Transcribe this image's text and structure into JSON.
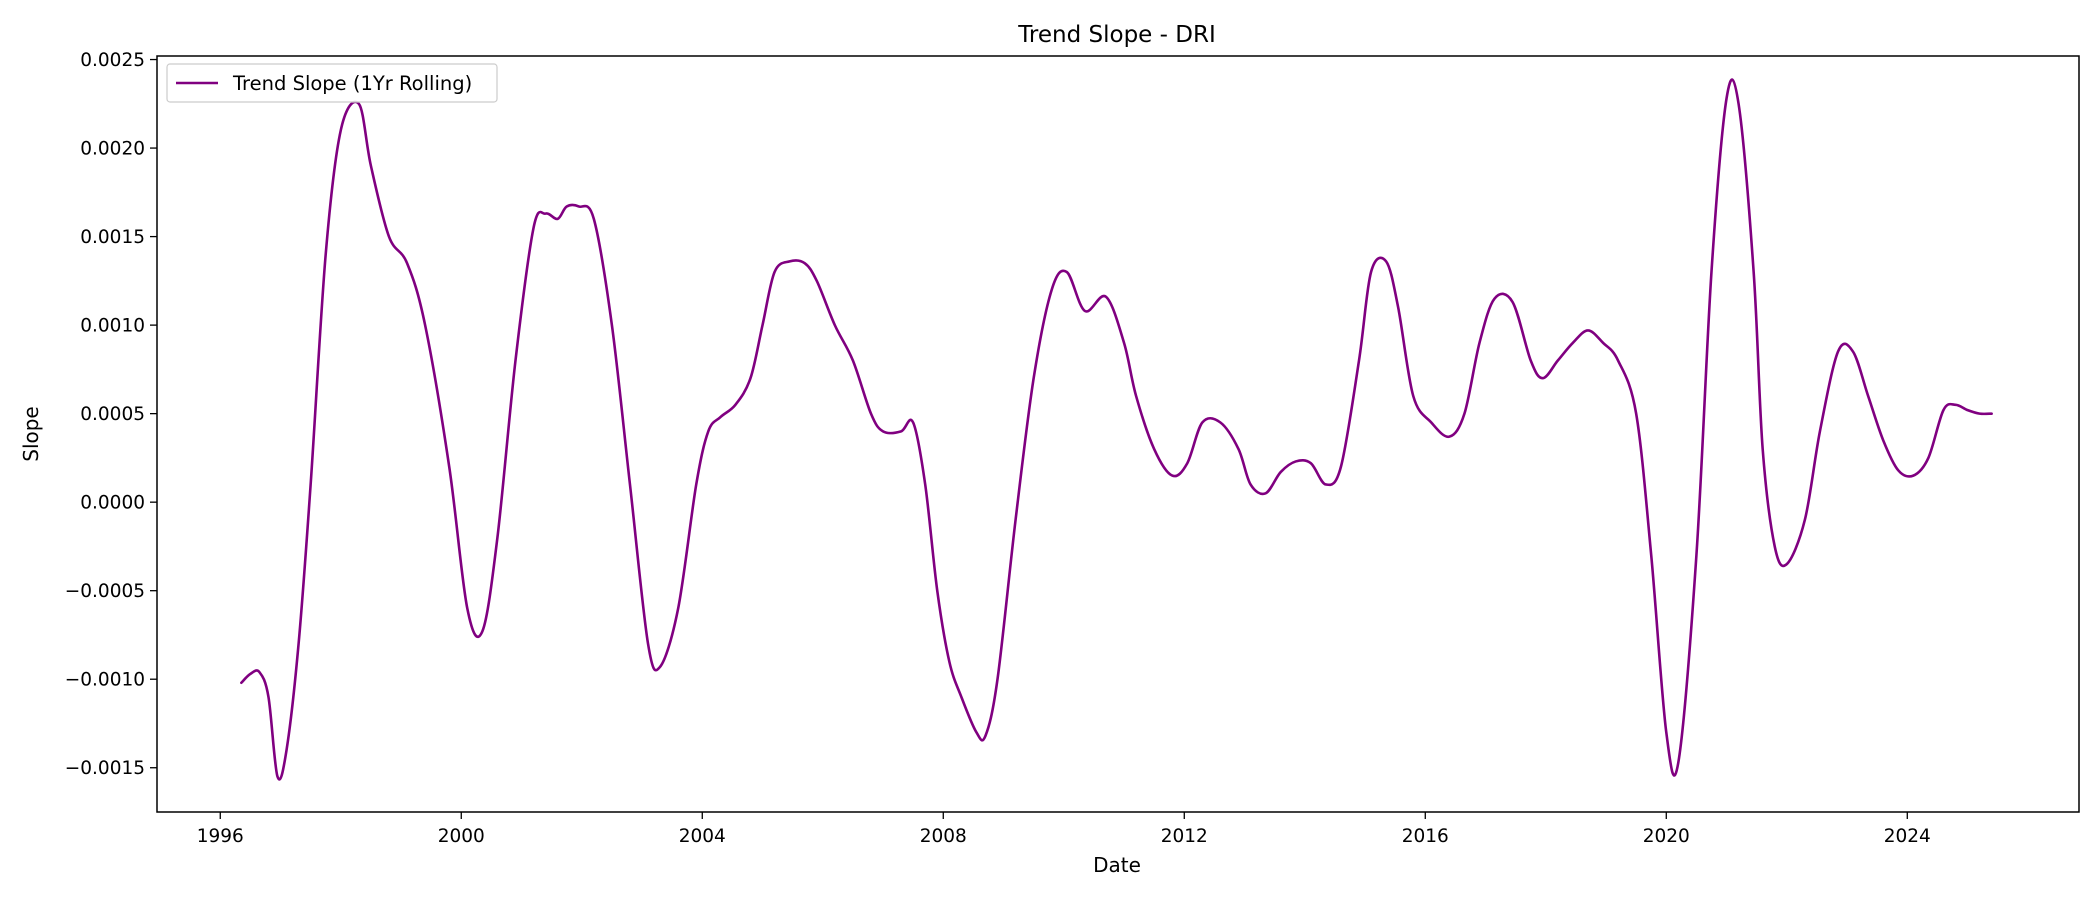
{
  "chart_data": {
    "type": "line",
    "title": "Trend Slope - DRI",
    "xlabel": "Date",
    "ylabel": "Slope",
    "xlim": [
      1994.95,
      2026.85
    ],
    "ylim": [
      -0.00175,
      0.00252
    ],
    "x_ticks": [
      1996,
      2000,
      2004,
      2008,
      2012,
      2016,
      2020,
      2024
    ],
    "x_tick_labels": [
      "1996",
      "2000",
      "2004",
      "2008",
      "2012",
      "2016",
      "2020",
      "2024"
    ],
    "y_ticks": [
      -0.0015,
      -0.001,
      -0.0005,
      0.0,
      0.0005,
      0.001,
      0.0015,
      0.002,
      0.0025
    ],
    "y_tick_labels": [
      "−0.0015",
      "−0.0010",
      "−0.0005",
      "0.0000",
      "0.0005",
      "0.0010",
      "0.0015",
      "0.0020",
      "0.0025"
    ],
    "grid": false,
    "legend_position": "top-left",
    "series": [
      {
        "name": "Trend Slope (1Yr Rolling)",
        "color": "#800080",
        "x": [
          1996.35,
          1996.5,
          1996.65,
          1996.8,
          1996.95,
          1997.1,
          1997.3,
          1997.5,
          1997.75,
          1998.0,
          1998.3,
          1998.5,
          1998.8,
          1999.1,
          1999.4,
          1999.8,
          2000.1,
          2000.35,
          2000.6,
          2000.9,
          2001.2,
          2001.4,
          2001.6,
          2001.75,
          2001.95,
          2002.2,
          2002.5,
          2002.8,
          2003.1,
          2003.3,
          2003.6,
          2003.9,
          2004.1,
          2004.3,
          2004.55,
          2004.8,
          2005.0,
          2005.2,
          2005.45,
          2005.7,
          2005.9,
          2006.2,
          2006.5,
          2006.8,
          2007.0,
          2007.3,
          2007.5,
          2007.7,
          2007.9,
          2008.1,
          2008.3,
          2008.55,
          2008.7,
          2008.9,
          2009.2,
          2009.5,
          2009.8,
          2010.05,
          2010.35,
          2010.7,
          2011.0,
          2011.2,
          2011.5,
          2011.8,
          2012.05,
          2012.3,
          2012.6,
          2012.9,
          2013.1,
          2013.35,
          2013.6,
          2013.85,
          2014.1,
          2014.35,
          2014.6,
          2014.9,
          2015.1,
          2015.35,
          2015.55,
          2015.8,
          2016.1,
          2016.4,
          2016.65,
          2016.9,
          2017.15,
          2017.45,
          2017.75,
          2017.95,
          2018.2,
          2018.45,
          2018.7,
          2018.95,
          2019.2,
          2019.5,
          2019.75,
          2020.0,
          2020.2,
          2020.5,
          2020.75,
          2021.0,
          2021.2,
          2021.45,
          2021.6,
          2021.8,
          2022.0,
          2022.3,
          2022.55,
          2022.85,
          2023.1,
          2023.35,
          2023.6,
          2023.85,
          2024.1,
          2024.35,
          2024.6,
          2024.8,
          2025.0,
          2025.2,
          2025.4
        ],
        "y": [
          -0.00102,
          -0.00097,
          -0.00096,
          -0.0011,
          -0.00155,
          -0.0014,
          -0.0008,
          0.0001,
          0.0014,
          0.0021,
          0.00225,
          0.0019,
          0.0015,
          0.00135,
          0.001,
          0.0002,
          -0.0006,
          -0.00073,
          -0.0002,
          0.0008,
          0.00155,
          0.00163,
          0.0016,
          0.00167,
          0.00167,
          0.0016,
          0.001,
          0.0001,
          -0.0008,
          -0.00093,
          -0.0006,
          0.0001,
          0.0004,
          0.00048,
          0.00055,
          0.0007,
          0.001,
          0.0013,
          0.00136,
          0.00135,
          0.00125,
          0.001,
          0.0008,
          0.0005,
          0.0004,
          0.0004,
          0.00045,
          0.0001,
          -0.0005,
          -0.0009,
          -0.0011,
          -0.0013,
          -0.00132,
          -0.001,
          -0.0001,
          0.0007,
          0.0012,
          0.0013,
          0.00108,
          0.00116,
          0.0009,
          0.0006,
          0.0003,
          0.00015,
          0.00022,
          0.00045,
          0.00045,
          0.0003,
          0.0001,
          5e-05,
          0.00017,
          0.00023,
          0.00022,
          0.0001,
          0.0002,
          0.0008,
          0.0013,
          0.00136,
          0.0011,
          0.0006,
          0.00045,
          0.00037,
          0.0005,
          0.0009,
          0.00115,
          0.00113,
          0.0008,
          0.0007,
          0.0008,
          0.0009,
          0.00097,
          0.0009,
          0.0008,
          0.0005,
          -0.0003,
          -0.0013,
          -0.00147,
          -0.0003,
          0.0013,
          0.00228,
          0.00225,
          0.0013,
          0.0003,
          -0.00025,
          -0.00035,
          -0.0001,
          0.0004,
          0.00085,
          0.00085,
          0.0006,
          0.00035,
          0.00018,
          0.00015,
          0.00025,
          0.00052,
          0.00055,
          0.00052,
          0.0005,
          0.0005
        ]
      }
    ]
  }
}
